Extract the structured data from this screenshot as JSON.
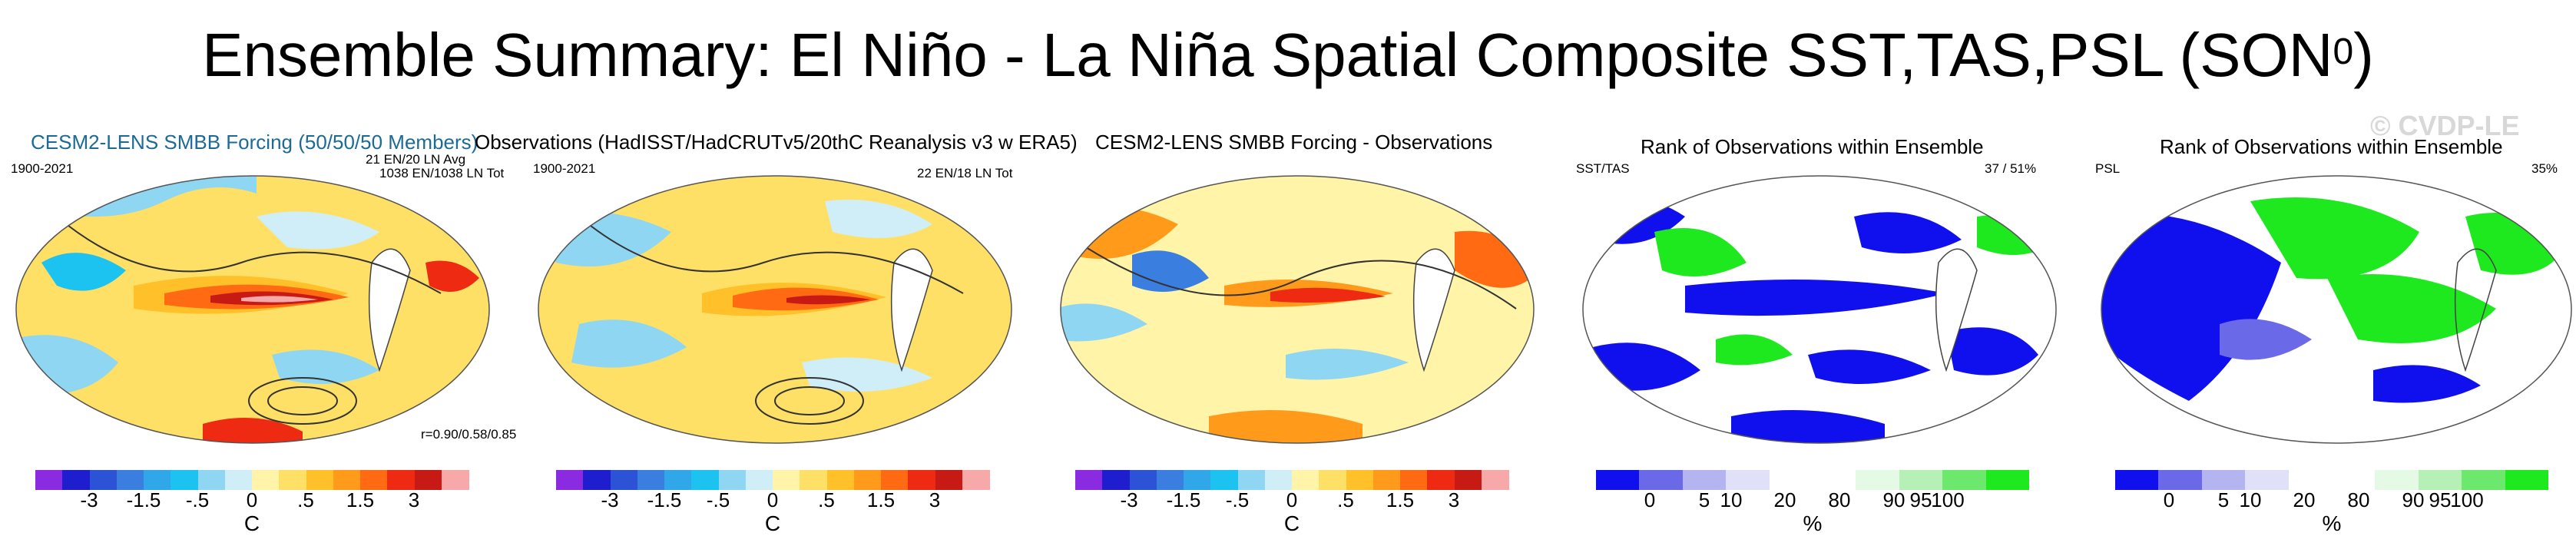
{
  "title": "Ensemble Summary: El Niño - La Niña Spatial Composite SST,TAS,PSL (SON",
  "title_sup": "0",
  "title_close": ")",
  "watermark": "© CVDP-LE",
  "panels": [
    {
      "title": "CESM2-LENS SMBB Forcing (50/50/50 Members)",
      "left_label": "1900-2021",
      "right_label_1": "21 EN/20 LN Avg",
      "right_label_2": "1038 EN/1038 LN Tot",
      "bottom_label": "r=0.90/0.58/0.85"
    },
    {
      "title": "Observations (HadISST/HadCRUTv5/20thC Reanalysis v3 w ERA5)",
      "left_label": "1900-2021",
      "right_label_1": "22 EN/18 LN Tot"
    },
    {
      "title": "CESM2-LENS SMBB Forcing - Observations"
    },
    {
      "title": "Rank of Observations within Ensemble",
      "left_label": "SST/TAS",
      "right_label_1": "37 /  51%"
    },
    {
      "title": "Rank of Observations within Ensemble",
      "left_label": "PSL",
      "right_label_1": "35%"
    }
  ],
  "temp_colorbar": {
    "colors": [
      "#8a2be2",
      "#1e1ecf",
      "#2c52d6",
      "#3a7fe0",
      "#2fa7e8",
      "#1cc2f0",
      "#8fd6f2",
      "#cfeef8",
      "#fff4a8",
      "#ffe066",
      "#ffc02a",
      "#ff9a1a",
      "#ff6a12",
      "#ee2b12",
      "#c81a14",
      "#f7a8a8"
    ],
    "ticks": [
      "-3",
      "-1.5",
      "-.5",
      "0",
      ".5",
      "1.5",
      "3"
    ],
    "unit": "C"
  },
  "rank_colorbar": {
    "colors": [
      "#1010ee",
      "#6a6ae8",
      "#b4b4f0",
      "#e0e0f8",
      "#ffffff",
      "#ffffff",
      "#e4fae4",
      "#b6f0b6",
      "#6ce86c",
      "#1ee81e"
    ],
    "ticks": [
      "0",
      "5",
      "10",
      "20",
      "80",
      "90",
      "95",
      "100"
    ],
    "unit": "%"
  },
  "map_colors": {
    "ocean_warm": "#ffe066",
    "enso": "#ff6a12",
    "cool": "#8fd6f2",
    "blue": "#1010ee",
    "green": "#1ee81e"
  }
}
